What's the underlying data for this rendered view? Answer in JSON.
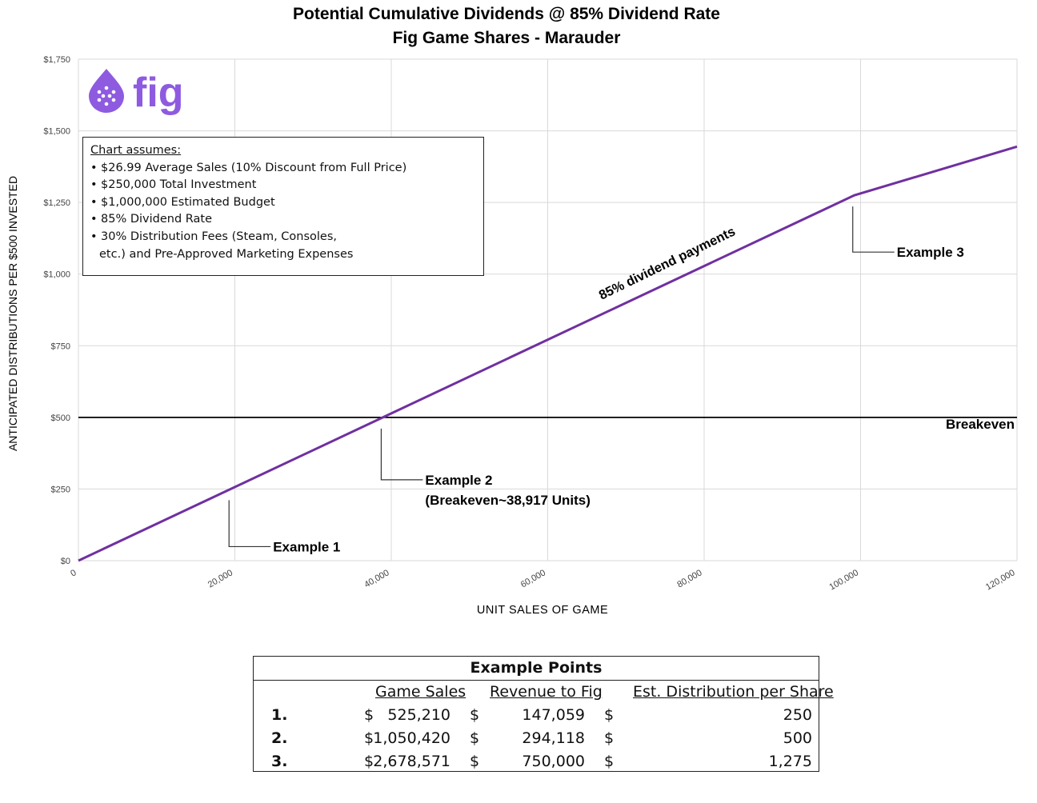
{
  "chart_data": {
    "type": "line",
    "title": "Potential Cumulative Dividends @ 85% Dividend Rate",
    "subtitle": "Fig Game Shares - Marauder",
    "xlabel": "UNIT SALES OF GAME",
    "ylabel": "ANTICIPATED DISTRIBUTIONS  PER $500 INVESTED",
    "xlim": [
      0,
      120000
    ],
    "ylim": [
      0,
      1750
    ],
    "x_ticks": [
      0,
      20000,
      40000,
      60000,
      80000,
      100000,
      120000
    ],
    "x_tick_labels": [
      "0",
      "20,000",
      "40,000",
      "60,000",
      "80,000",
      "100,000",
      "120,000"
    ],
    "y_ticks": [
      0,
      250,
      500,
      750,
      1000,
      1250,
      1500,
      1750
    ],
    "y_tick_labels": [
      "$0",
      "$250",
      "$500",
      "$750",
      "$1,000",
      "$1,250",
      "$1,500",
      "$1,750"
    ],
    "grid": true,
    "series": [
      {
        "name": "85% dividend payments",
        "color": "#7030A0",
        "x": [
          0,
          38917,
          99206,
          120000
        ],
        "y": [
          0,
          500,
          1275,
          1445
        ]
      }
    ],
    "reference_line": {
      "y": 500,
      "label": "Breakeven",
      "color": "#000000"
    },
    "annotations": [
      {
        "text": "Example 1",
        "x": 19460,
        "y": 250
      },
      {
        "text": "Example 2",
        "text2": "(Breakeven~38,917 Units)",
        "x": 38917,
        "y": 500
      },
      {
        "text": "Example 3",
        "x": 99206,
        "y": 1275
      }
    ]
  },
  "logo": {
    "text": "fig",
    "color": "#8E5BE0"
  },
  "assumptions": {
    "heading": "Chart assumes:",
    "items": [
      "$26.99 Average Sales (10% Discount from Full Price)",
      "$250,000 Total Investment",
      "$1,000,000 Estimated Budget",
      "85% Dividend Rate",
      "30% Distribution Fees (Steam, Consoles,",
      "etc.) and Pre-Approved Marketing Expenses"
    ]
  },
  "example_table": {
    "title": "Example Points",
    "headers": [
      "Game Sales",
      "Revenue to Fig",
      "Est. Distribution per Share"
    ],
    "rows": [
      {
        "num": "1.",
        "sales": "525,210",
        "revenue": "147,059",
        "dist": "250"
      },
      {
        "num": "2.",
        "sales": "1,050,420",
        "revenue": "294,118",
        "dist": "500"
      },
      {
        "num": "3.",
        "sales": "2,678,571",
        "revenue": "750,000",
        "dist": "1,275"
      }
    ],
    "currency": "$"
  }
}
